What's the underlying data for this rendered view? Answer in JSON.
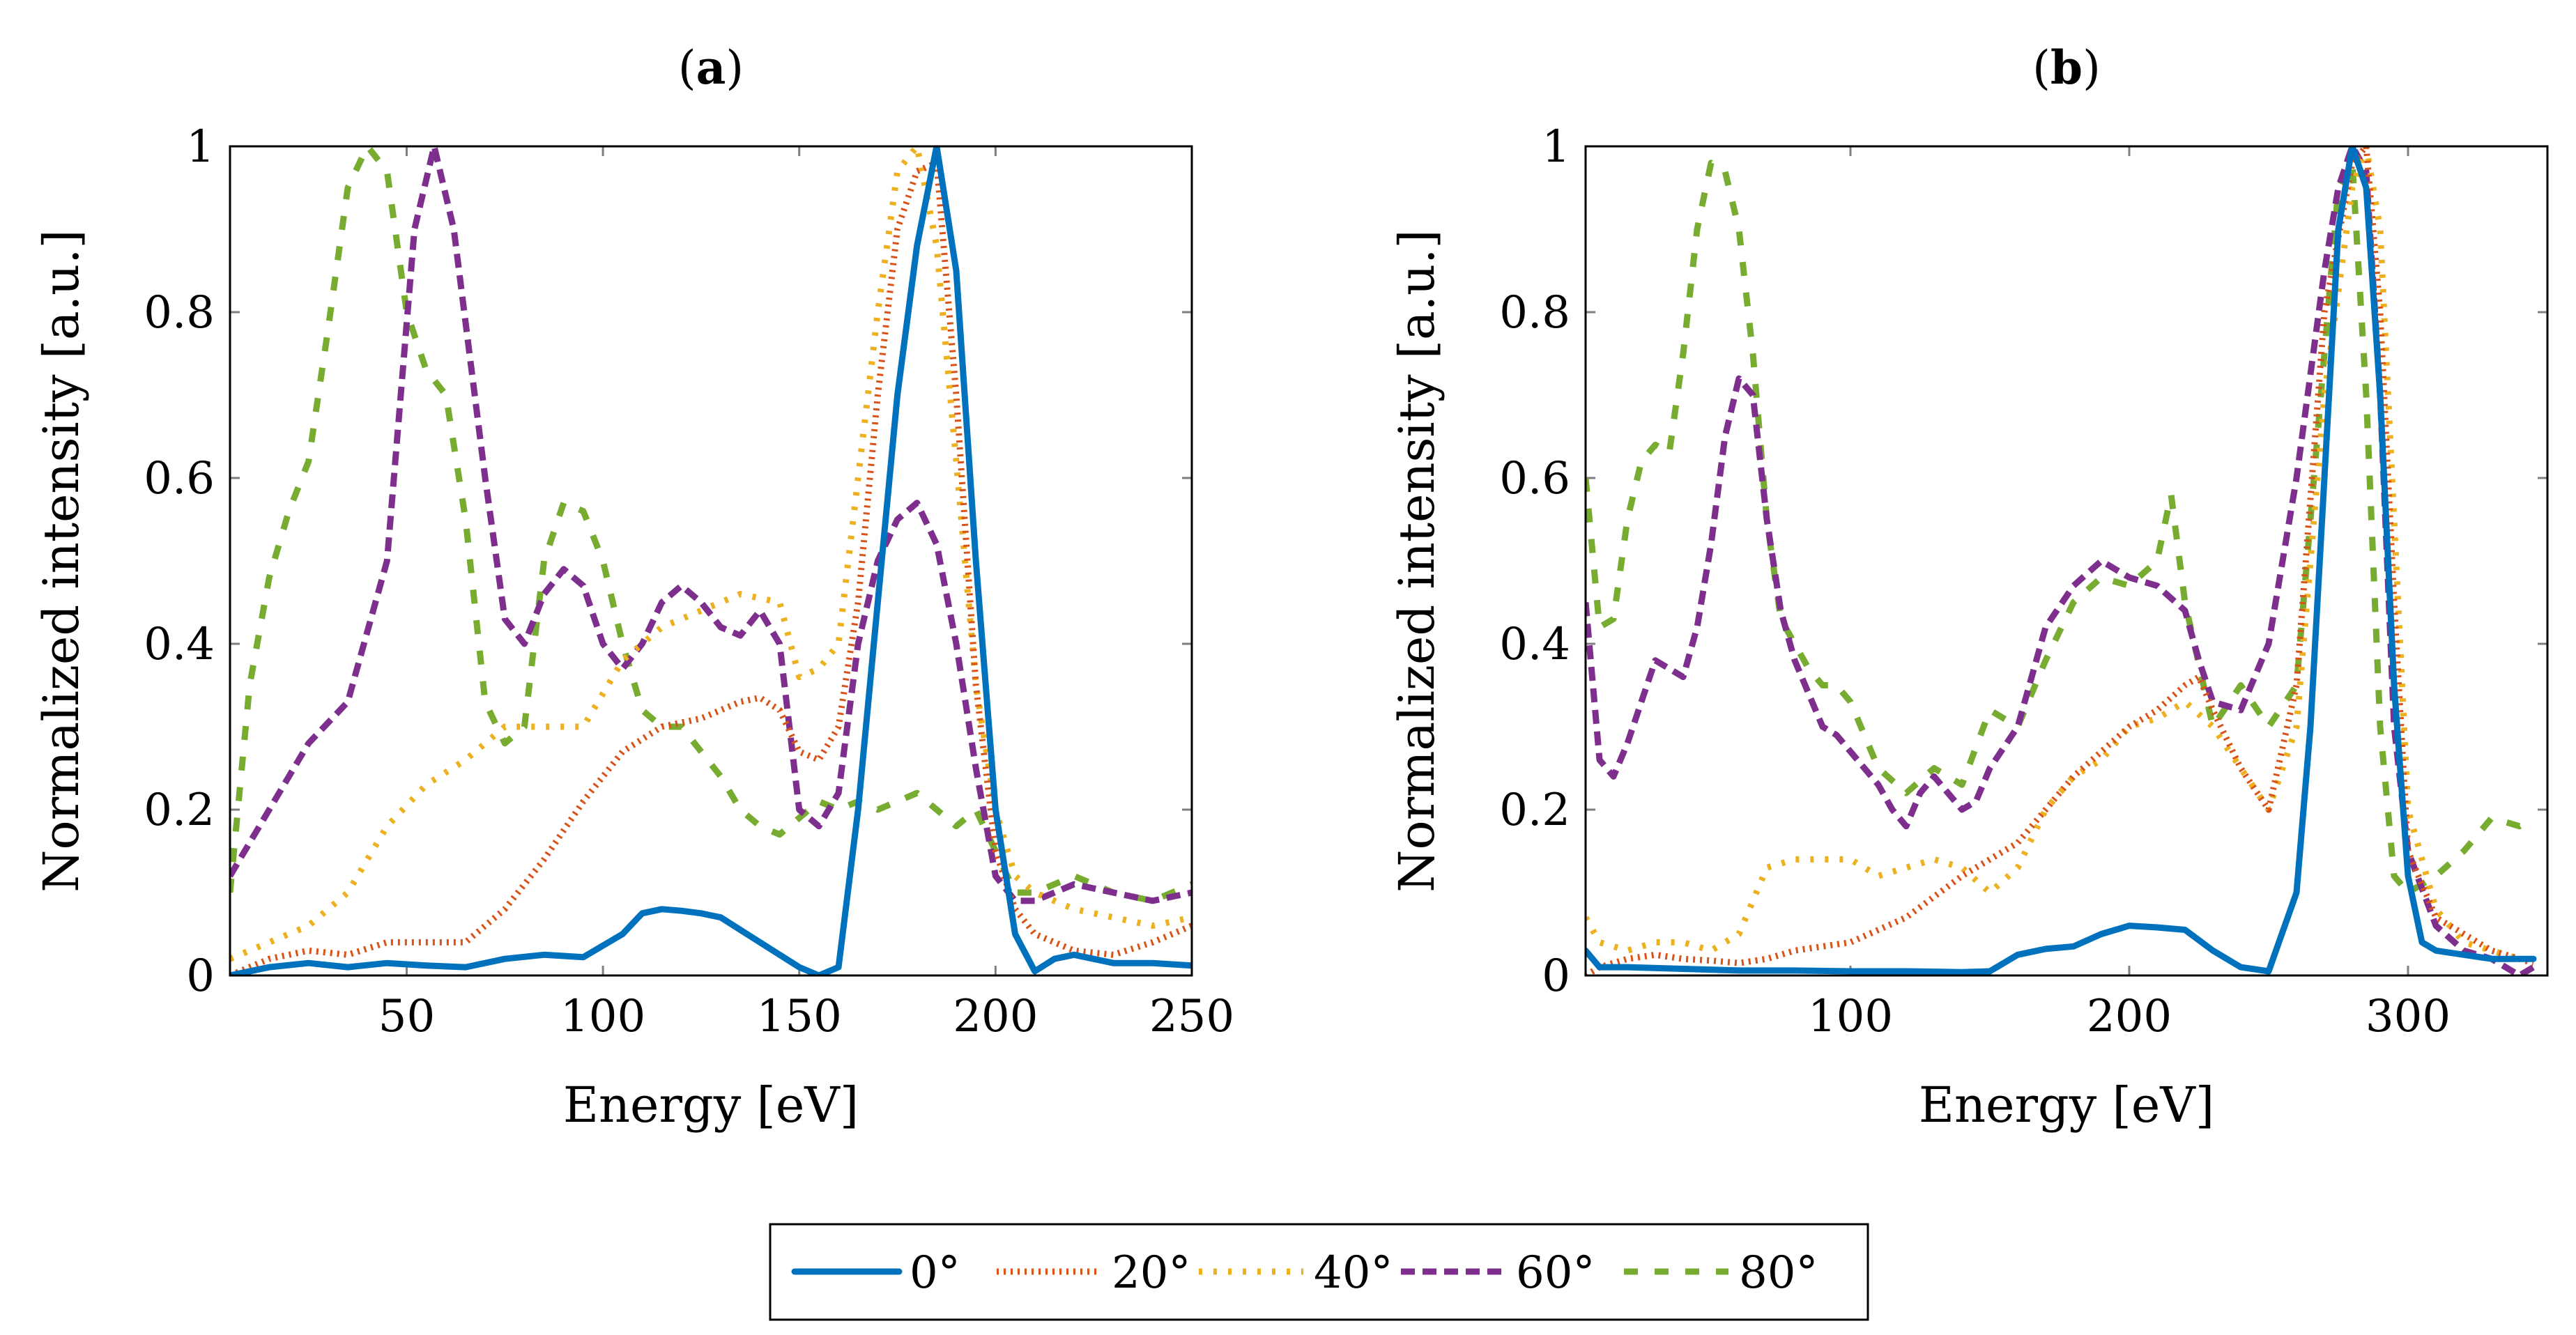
{
  "colors": {
    "s0": "#0072bd",
    "s20": "#d95319",
    "s40": "#edb120",
    "s60": "#7e2f8e",
    "s80": "#77ac30",
    "frame": "#000000",
    "tick": "#7f7f7f"
  },
  "legend": {
    "items": [
      {
        "label": "0°",
        "color": "#0072bd",
        "style": "solid"
      },
      {
        "label": "20°",
        "color": "#d95319",
        "style": "dotted"
      },
      {
        "label": "40°",
        "color": "#edb120",
        "style": "loose-dotted"
      },
      {
        "label": "60°",
        "color": "#7e2f8e",
        "style": "dashed"
      },
      {
        "label": "80°",
        "color": "#77ac30",
        "style": "loose-dashed"
      }
    ]
  },
  "chart_data": [
    {
      "type": "line",
      "title_letter": "a",
      "xlabel": "Energy [eV]",
      "ylabel": "Normalized intensity [a.u.]",
      "xlim": [
        5,
        250
      ],
      "ylim": [
        0,
        1
      ],
      "xticks": [
        50,
        100,
        150,
        200,
        250
      ],
      "yticks": [
        0,
        0.2,
        0.4,
        0.6,
        0.8,
        1
      ],
      "ytick_labels": [
        "0",
        "0.2",
        "0.4",
        "0.6",
        "0.8",
        "1"
      ],
      "series": [
        {
          "name": "0°",
          "x": [
            5,
            15,
            25,
            35,
            45,
            55,
            65,
            75,
            85,
            95,
            105,
            110,
            115,
            120,
            125,
            130,
            140,
            150,
            155,
            160,
            165,
            170,
            175,
            180,
            185,
            190,
            195,
            200,
            205,
            210,
            215,
            220,
            230,
            240,
            250
          ],
          "y": [
            0.0,
            0.01,
            0.015,
            0.01,
            0.015,
            0.012,
            0.01,
            0.02,
            0.025,
            0.022,
            0.05,
            0.075,
            0.08,
            0.078,
            0.075,
            0.07,
            0.04,
            0.01,
            0.0,
            0.01,
            0.2,
            0.45,
            0.7,
            0.88,
            1.0,
            0.85,
            0.5,
            0.2,
            0.05,
            0.005,
            0.02,
            0.025,
            0.015,
            0.015,
            0.012
          ]
        },
        {
          "name": "20°",
          "x": [
            5,
            15,
            25,
            35,
            45,
            55,
            65,
            75,
            85,
            95,
            105,
            115,
            125,
            135,
            140,
            145,
            150,
            155,
            160,
            165,
            170,
            175,
            180,
            185,
            190,
            195,
            200,
            205,
            210,
            220,
            230,
            240,
            250
          ],
          "y": [
            0.0,
            0.02,
            0.03,
            0.025,
            0.04,
            0.04,
            0.04,
            0.08,
            0.14,
            0.21,
            0.27,
            0.3,
            0.31,
            0.33,
            0.335,
            0.32,
            0.27,
            0.26,
            0.3,
            0.45,
            0.7,
            0.9,
            0.97,
            0.98,
            0.7,
            0.35,
            0.15,
            0.08,
            0.05,
            0.03,
            0.025,
            0.04,
            0.06
          ]
        },
        {
          "name": "40°",
          "x": [
            5,
            15,
            25,
            35,
            45,
            55,
            65,
            75,
            85,
            95,
            105,
            115,
            125,
            135,
            145,
            150,
            155,
            160,
            165,
            170,
            175,
            180,
            185,
            190,
            195,
            200,
            205,
            210,
            220,
            230,
            240,
            250
          ],
          "y": [
            0.02,
            0.04,
            0.06,
            0.1,
            0.18,
            0.23,
            0.26,
            0.3,
            0.3,
            0.3,
            0.38,
            0.42,
            0.44,
            0.46,
            0.45,
            0.36,
            0.37,
            0.4,
            0.6,
            0.8,
            0.97,
            1.0,
            0.88,
            0.62,
            0.35,
            0.2,
            0.12,
            0.1,
            0.08,
            0.07,
            0.06,
            0.07
          ]
        },
        {
          "name": "60°",
          "x": [
            5,
            15,
            25,
            35,
            45,
            52,
            57,
            62,
            70,
            75,
            80,
            85,
            90,
            95,
            100,
            105,
            110,
            115,
            120,
            125,
            130,
            135,
            140,
            145,
            150,
            155,
            160,
            165,
            170,
            175,
            180,
            185,
            190,
            195,
            200,
            205,
            210,
            220,
            230,
            240,
            250
          ],
          "y": [
            0.12,
            0.2,
            0.28,
            0.33,
            0.5,
            0.9,
            1.0,
            0.9,
            0.6,
            0.43,
            0.4,
            0.46,
            0.49,
            0.47,
            0.4,
            0.37,
            0.4,
            0.45,
            0.47,
            0.45,
            0.42,
            0.41,
            0.44,
            0.4,
            0.2,
            0.18,
            0.22,
            0.4,
            0.5,
            0.55,
            0.57,
            0.52,
            0.4,
            0.25,
            0.12,
            0.09,
            0.09,
            0.11,
            0.1,
            0.09,
            0.1
          ]
        },
        {
          "name": "80°",
          "x": [
            5,
            10,
            15,
            20,
            25,
            30,
            35,
            40,
            45,
            50,
            55,
            60,
            65,
            70,
            75,
            80,
            85,
            90,
            95,
            100,
            105,
            110,
            115,
            120,
            125,
            130,
            135,
            140,
            145,
            150,
            155,
            160,
            165,
            170,
            175,
            180,
            185,
            190,
            195,
            200,
            205,
            210,
            220,
            230,
            240,
            250
          ],
          "y": [
            0.1,
            0.35,
            0.48,
            0.56,
            0.62,
            0.78,
            0.95,
            1.0,
            0.97,
            0.8,
            0.73,
            0.7,
            0.55,
            0.33,
            0.28,
            0.3,
            0.5,
            0.57,
            0.56,
            0.5,
            0.4,
            0.32,
            0.3,
            0.3,
            0.27,
            0.24,
            0.2,
            0.18,
            0.17,
            0.19,
            0.21,
            0.2,
            0.21,
            0.2,
            0.21,
            0.22,
            0.2,
            0.18,
            0.2,
            0.15,
            0.1,
            0.1,
            0.12,
            0.1,
            0.09,
            0.11
          ]
        }
      ]
    },
    {
      "type": "line",
      "title_letter": "b",
      "xlabel": "Energy [eV]",
      "ylabel": "Normalized intensity [a.u.]",
      "xlim": [
        5,
        350
      ],
      "ylim": [
        0,
        1
      ],
      "xticks": [
        100,
        200,
        300
      ],
      "yticks": [
        0,
        0.2,
        0.4,
        0.6,
        0.8,
        1
      ],
      "ytick_labels": [
        "0",
        "0.2",
        "0.4",
        "0.6",
        "0.8",
        "1"
      ],
      "series": [
        {
          "name": "0°",
          "x": [
            5,
            10,
            20,
            40,
            60,
            80,
            100,
            120,
            140,
            150,
            160,
            170,
            180,
            190,
            200,
            210,
            220,
            230,
            240,
            250,
            260,
            265,
            270,
            275,
            280,
            285,
            290,
            295,
            300,
            305,
            310,
            320,
            330,
            340,
            345
          ],
          "y": [
            0.03,
            0.01,
            0.01,
            0.008,
            0.006,
            0.006,
            0.005,
            0.005,
            0.004,
            0.005,
            0.025,
            0.032,
            0.035,
            0.05,
            0.06,
            0.058,
            0.055,
            0.03,
            0.01,
            0.005,
            0.1,
            0.3,
            0.6,
            0.9,
            1.0,
            0.95,
            0.7,
            0.35,
            0.12,
            0.04,
            0.03,
            0.025,
            0.02,
            0.02,
            0.02
          ]
        },
        {
          "name": "20°",
          "x": [
            5,
            10,
            20,
            30,
            40,
            50,
            60,
            70,
            80,
            90,
            100,
            120,
            140,
            160,
            180,
            200,
            210,
            220,
            225,
            230,
            240,
            250,
            260,
            270,
            280,
            285,
            290,
            295,
            300,
            310,
            320,
            330,
            340,
            345
          ],
          "y": [
            0.0,
            0.01,
            0.02,
            0.025,
            0.02,
            0.018,
            0.015,
            0.02,
            0.03,
            0.035,
            0.04,
            0.07,
            0.12,
            0.16,
            0.24,
            0.3,
            0.32,
            0.35,
            0.36,
            0.32,
            0.25,
            0.2,
            0.35,
            0.8,
            0.98,
            1.0,
            0.8,
            0.45,
            0.15,
            0.07,
            0.05,
            0.03,
            0.02,
            0.015
          ]
        },
        {
          "name": "40°",
          "x": [
            5,
            10,
            20,
            30,
            40,
            50,
            60,
            70,
            80,
            90,
            100,
            110,
            120,
            130,
            140,
            150,
            160,
            170,
            180,
            190,
            200,
            210,
            220,
            230,
            240,
            250,
            260,
            270,
            280,
            285,
            290,
            300,
            310,
            320,
            330,
            340,
            345
          ],
          "y": [
            0.07,
            0.04,
            0.03,
            0.04,
            0.04,
            0.03,
            0.05,
            0.13,
            0.14,
            0.14,
            0.14,
            0.12,
            0.13,
            0.14,
            0.13,
            0.1,
            0.13,
            0.2,
            0.24,
            0.26,
            0.3,
            0.31,
            0.33,
            0.3,
            0.25,
            0.2,
            0.3,
            0.7,
            0.95,
            1.0,
            0.9,
            0.2,
            0.08,
            0.04,
            0.03,
            0.02,
            0.02
          ]
        },
        {
          "name": "60°",
          "x": [
            5,
            10,
            15,
            20,
            25,
            30,
            35,
            40,
            45,
            50,
            55,
            60,
            65,
            70,
            75,
            80,
            85,
            90,
            95,
            100,
            110,
            115,
            120,
            125,
            130,
            135,
            140,
            145,
            150,
            160,
            170,
            180,
            190,
            200,
            210,
            220,
            225,
            230,
            240,
            250,
            260,
            270,
            275,
            280,
            285,
            290,
            295,
            300,
            310,
            320,
            330,
            340,
            345
          ],
          "y": [
            0.45,
            0.26,
            0.24,
            0.28,
            0.33,
            0.38,
            0.37,
            0.36,
            0.42,
            0.52,
            0.65,
            0.72,
            0.7,
            0.55,
            0.44,
            0.38,
            0.34,
            0.3,
            0.29,
            0.27,
            0.23,
            0.2,
            0.18,
            0.22,
            0.24,
            0.22,
            0.2,
            0.21,
            0.25,
            0.3,
            0.42,
            0.47,
            0.5,
            0.48,
            0.47,
            0.44,
            0.38,
            0.33,
            0.32,
            0.4,
            0.6,
            0.85,
            0.95,
            1.0,
            0.97,
            0.7,
            0.3,
            0.15,
            0.06,
            0.03,
            0.02,
            0.0,
            0.01
          ]
        },
        {
          "name": "80°",
          "x": [
            5,
            10,
            15,
            20,
            25,
            30,
            35,
            40,
            45,
            50,
            55,
            60,
            65,
            70,
            75,
            80,
            85,
            90,
            95,
            100,
            110,
            120,
            130,
            140,
            150,
            160,
            170,
            180,
            190,
            200,
            210,
            215,
            220,
            230,
            240,
            250,
            260,
            270,
            275,
            280,
            285,
            290,
            295,
            300,
            310,
            320,
            330,
            340,
            345
          ],
          "y": [
            0.6,
            0.42,
            0.43,
            0.55,
            0.62,
            0.64,
            0.63,
            0.75,
            0.9,
            0.98,
            0.97,
            0.9,
            0.75,
            0.55,
            0.43,
            0.4,
            0.37,
            0.35,
            0.35,
            0.33,
            0.25,
            0.22,
            0.25,
            0.23,
            0.32,
            0.3,
            0.38,
            0.45,
            0.48,
            0.47,
            0.5,
            0.58,
            0.45,
            0.3,
            0.35,
            0.3,
            0.35,
            0.75,
            0.95,
            0.98,
            0.7,
            0.3,
            0.12,
            0.1,
            0.12,
            0.15,
            0.19,
            0.18,
            0.19
          ]
        }
      ]
    }
  ]
}
